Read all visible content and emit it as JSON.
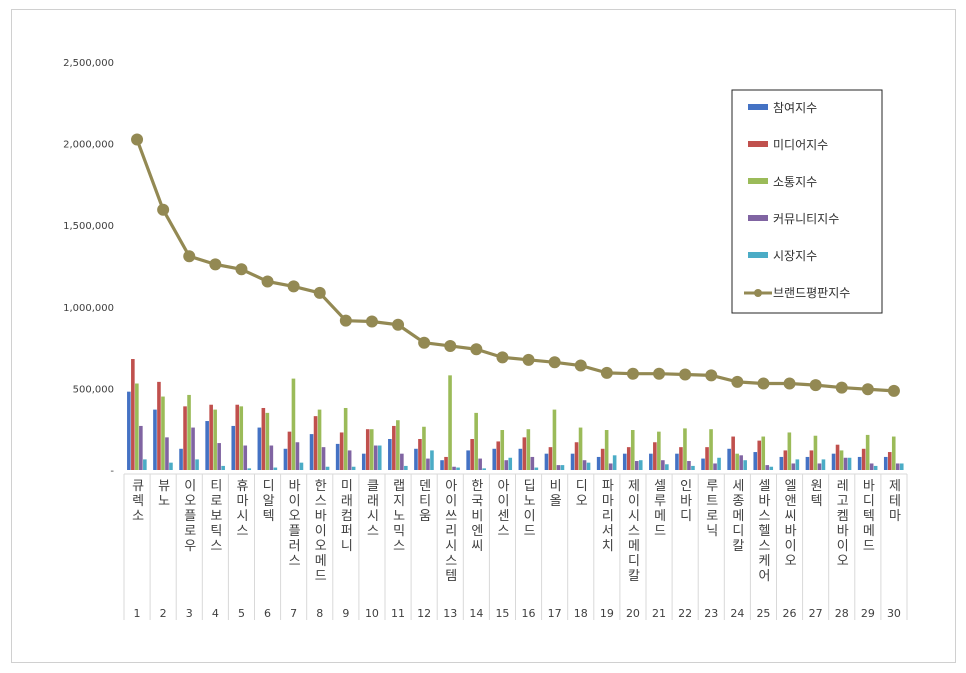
{
  "chart_data": {
    "type": "bar",
    "title": "",
    "xlabel": "",
    "ylabel": "",
    "ylim": [
      0,
      2500000
    ],
    "yticks": [
      "-",
      "500,000",
      "1,000,000",
      "1,500,000",
      "2,000,000",
      "2,500,000"
    ],
    "ytick_values": [
      0,
      500000,
      1000000,
      1500000,
      2000000,
      2500000
    ],
    "grid": false,
    "legend_position": "top-right",
    "ranks": [
      "1",
      "2",
      "3",
      "4",
      "5",
      "6",
      "7",
      "8",
      "9",
      "10",
      "11",
      "12",
      "13",
      "14",
      "15",
      "16",
      "17",
      "18",
      "19",
      "20",
      "21",
      "22",
      "23",
      "24",
      "25",
      "26",
      "27",
      "28",
      "29",
      "30"
    ],
    "categories": [
      "큐렉소",
      "뷰노",
      "이오플로우",
      "티로보틱스",
      "휴마시스",
      "디알텍",
      "바이오플러스",
      "한스바이오메드",
      "미래컴퍼니",
      "클래시스",
      "랩지노믹스",
      "덴티움",
      "아이쓰리시스템",
      "한국비엔씨",
      "아이센스",
      "딥노이드",
      "비올",
      "디오",
      "파마리서치",
      "제이시스메디칼",
      "셀루메드",
      "인바디",
      "루트로닉",
      "세종메디칼",
      "셀바스헬스케어",
      "엘앤씨바이오",
      "원텍",
      "레고켐바이오",
      "바디텍메드",
      "제테마"
    ],
    "series": [
      {
        "name": "참여지수",
        "kind": "bar",
        "color": "#4472c4",
        "values": [
          480000,
          370000,
          130000,
          300000,
          270000,
          260000,
          130000,
          220000,
          160000,
          100000,
          190000,
          130000,
          60000,
          120000,
          130000,
          130000,
          100000,
          100000,
          80000,
          100000,
          100000,
          100000,
          70000,
          130000,
          110000,
          80000,
          80000,
          100000,
          80000,
          80000
        ]
      },
      {
        "name": "미디어지수",
        "kind": "bar",
        "color": "#c0504d",
        "values": [
          680000,
          540000,
          390000,
          400000,
          400000,
          380000,
          235000,
          330000,
          230000,
          250000,
          270000,
          190000,
          80000,
          190000,
          175000,
          200000,
          140000,
          170000,
          130000,
          140000,
          170000,
          140000,
          140000,
          205000,
          180000,
          120000,
          120000,
          155000,
          130000,
          110000
        ]
      },
      {
        "name": "소통지수",
        "kind": "bar",
        "color": "#9bbb59",
        "values": [
          530000,
          450000,
          460000,
          370000,
          390000,
          350000,
          560000,
          370000,
          380000,
          250000,
          305000,
          265000,
          580000,
          350000,
          245000,
          250000,
          370000,
          260000,
          245000,
          245000,
          235000,
          255000,
          250000,
          100000,
          205000,
          230000,
          210000,
          120000,
          215000,
          205000
        ]
      },
      {
        "name": "커뮤니티지수",
        "kind": "bar",
        "color": "#8064a2",
        "values": [
          270000,
          200000,
          260000,
          165000,
          150000,
          150000,
          170000,
          140000,
          120000,
          150000,
          100000,
          70000,
          20000,
          70000,
          60000,
          80000,
          30000,
          60000,
          40000,
          55000,
          60000,
          55000,
          40000,
          90000,
          30000,
          40000,
          40000,
          75000,
          40000,
          40000
        ]
      },
      {
        "name": "시장지수",
        "kind": "bar",
        "color": "#4bacc6",
        "values": [
          65000,
          45000,
          65000,
          25000,
          10000,
          15000,
          45000,
          20000,
          20000,
          150000,
          25000,
          120000,
          15000,
          10000,
          75000,
          15000,
          30000,
          45000,
          90000,
          60000,
          35000,
          25000,
          75000,
          60000,
          20000,
          65000,
          65000,
          75000,
          25000,
          40000
        ]
      },
      {
        "name": "브랜드평판지수",
        "kind": "line",
        "color": "#938953",
        "values": [
          2025000,
          1595000,
          1310000,
          1260000,
          1230000,
          1155000,
          1125000,
          1085000,
          915000,
          910000,
          890000,
          780000,
          760000,
          740000,
          690000,
          675000,
          660000,
          640000,
          595000,
          590000,
          590000,
          585000,
          580000,
          540000,
          530000,
          530000,
          520000,
          505000,
          495000,
          485000
        ]
      }
    ]
  }
}
